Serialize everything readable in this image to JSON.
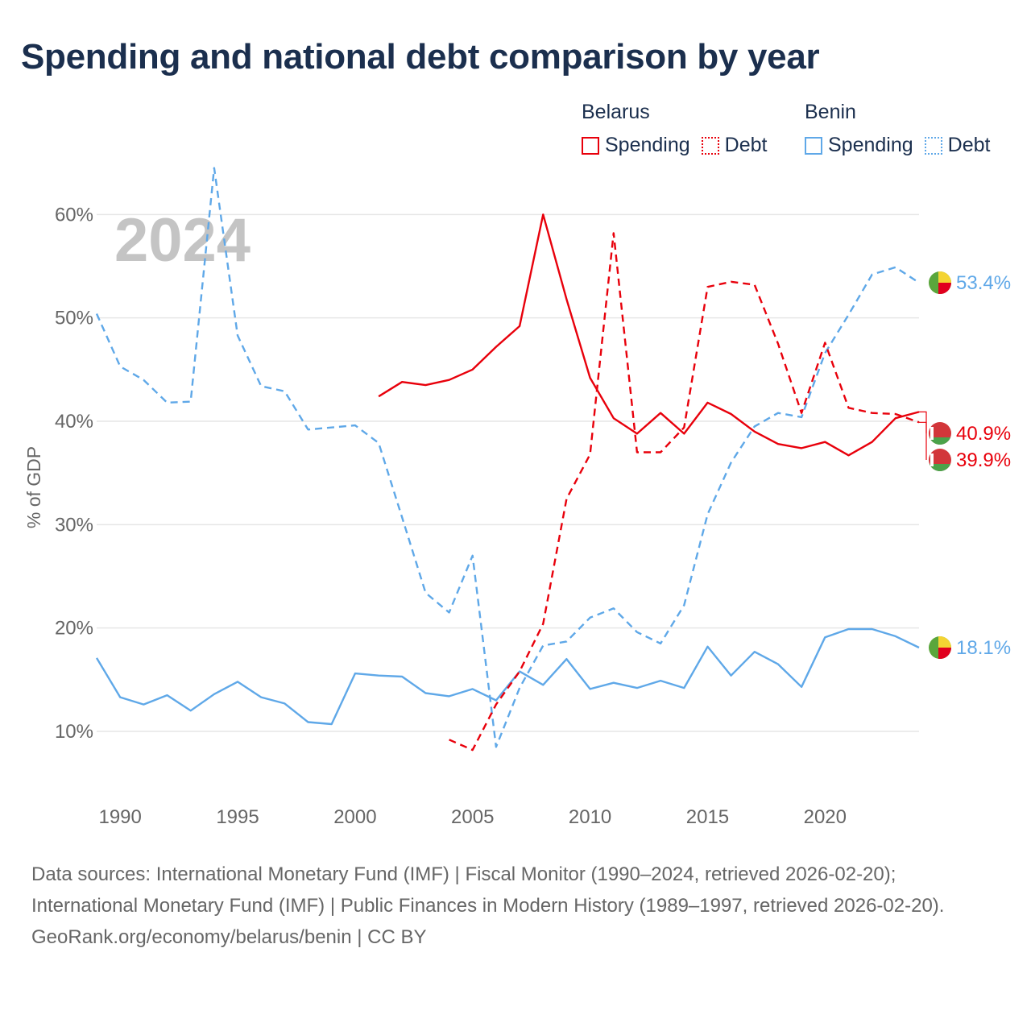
{
  "title": "Spending and national debt comparison by year",
  "legend": {
    "groups": [
      {
        "name": "Belarus",
        "items": [
          {
            "label": "Spending",
            "style": "solid",
            "color": "#e8000b"
          },
          {
            "label": "Debt",
            "style": "dotted",
            "color": "#e8000b"
          }
        ]
      },
      {
        "name": "Benin",
        "items": [
          {
            "label": "Spending",
            "style": "solid",
            "color": "#5fa8e8"
          },
          {
            "label": "Debt",
            "style": "dotted",
            "color": "#5fa8e8"
          }
        ]
      }
    ]
  },
  "chart_data": {
    "type": "line",
    "title": "Spending and national debt comparison by year",
    "year_label": "2024",
    "ylabel": "% of GDP",
    "xlim": [
      1989,
      2024
    ],
    "ylim": [
      4,
      64
    ],
    "x_ticks": [
      1990,
      1995,
      2000,
      2005,
      2010,
      2015,
      2020
    ],
    "y_ticks": [
      10,
      20,
      30,
      40,
      50,
      60
    ],
    "y_tick_labels": [
      "10%",
      "20%",
      "30%",
      "40%",
      "50%",
      "60%"
    ],
    "grid": true,
    "series": [
      {
        "name": "Belarus Spending",
        "country": "Belarus",
        "metric": "Spending",
        "color": "#e8000b",
        "dashed": false,
        "x": [
          2001,
          2002,
          2003,
          2004,
          2005,
          2006,
          2007,
          2008,
          2009,
          2010,
          2011,
          2012,
          2013,
          2014,
          2015,
          2016,
          2017,
          2018,
          2019,
          2020,
          2021,
          2022,
          2023,
          2024
        ],
        "values": [
          42.4,
          43.8,
          43.5,
          44.0,
          45.0,
          47.2,
          49.2,
          60.0,
          51.8,
          44.2,
          40.3,
          38.8,
          40.8,
          38.8,
          41.8,
          40.7,
          39.0,
          37.8,
          37.4,
          38.0,
          36.7,
          38.0,
          40.3,
          40.9
        ],
        "end_label": "40.9%"
      },
      {
        "name": "Belarus Debt",
        "country": "Belarus",
        "metric": "Debt",
        "color": "#e8000b",
        "dashed": true,
        "x": [
          2004,
          2005,
          2006,
          2007,
          2008,
          2009,
          2010,
          2011,
          2012,
          2013,
          2014,
          2015,
          2016,
          2017,
          2018,
          2019,
          2020,
          2021,
          2022,
          2023,
          2024
        ],
        "values": [
          9.2,
          8.2,
          12.6,
          15.8,
          20.4,
          32.5,
          36.8,
          58.2,
          37.0,
          37.0,
          39.4,
          53.0,
          53.5,
          53.2,
          47.5,
          40.8,
          47.6,
          41.3,
          40.8,
          40.7,
          39.9
        ],
        "end_label": "39.9%"
      },
      {
        "name": "Benin Spending",
        "country": "Benin",
        "metric": "Spending",
        "color": "#5fa8e8",
        "dashed": false,
        "x": [
          1989,
          1990,
          1991,
          1992,
          1993,
          1994,
          1995,
          1996,
          1997,
          1998,
          1999,
          2000,
          2001,
          2002,
          2003,
          2004,
          2005,
          2006,
          2007,
          2008,
          2009,
          2010,
          2011,
          2012,
          2013,
          2014,
          2015,
          2016,
          2017,
          2018,
          2019,
          2020,
          2021,
          2022,
          2023,
          2024
        ],
        "values": [
          17.1,
          13.3,
          12.6,
          13.5,
          12.0,
          13.6,
          14.8,
          13.3,
          12.7,
          10.9,
          10.7,
          15.6,
          15.4,
          15.3,
          13.7,
          13.4,
          14.1,
          13.0,
          15.8,
          14.5,
          17.0,
          14.1,
          14.7,
          14.2,
          14.9,
          14.2,
          18.2,
          15.4,
          17.7,
          16.5,
          14.3,
          19.1,
          19.9,
          19.9,
          19.2,
          18.1
        ],
        "end_label": "18.1%"
      },
      {
        "name": "Benin Debt",
        "country": "Benin",
        "metric": "Debt",
        "color": "#5fa8e8",
        "dashed": true,
        "x": [
          1989,
          1990,
          1991,
          1992,
          1993,
          1994,
          1995,
          1996,
          1997,
          1998,
          1999,
          2000,
          2001,
          2002,
          2003,
          2004,
          2005,
          2006,
          2007,
          2008,
          2009,
          2010,
          2011,
          2012,
          2013,
          2014,
          2015,
          2016,
          2017,
          2018,
          2019,
          2020,
          2021,
          2022,
          2023,
          2024
        ],
        "values": [
          50.4,
          45.3,
          44.0,
          41.8,
          41.9,
          64.5,
          48.3,
          43.4,
          42.9,
          39.2,
          39.4,
          39.6,
          37.9,
          30.7,
          23.4,
          21.5,
          27.0,
          8.5,
          14.2,
          18.3,
          18.7,
          21.0,
          21.9,
          19.6,
          18.5,
          22.2,
          31.0,
          36.0,
          39.5,
          40.8,
          40.4,
          46.6,
          50.3,
          54.2,
          54.9,
          53.4
        ],
        "end_label": "53.4%"
      }
    ]
  },
  "footer": {
    "sources": "Data sources: International Monetary Fund (IMF) | Fiscal Monitor (1990–2024, retrieved 2026-02-20); International Monetary Fund (IMF) | Public Finances in Modern History (1989–1997, retrieved 2026-02-20).",
    "credit": "GeoRank.org/economy/belarus/benin | CC BY"
  },
  "flag_colors": {
    "benin": {
      "green": "#5aa63c",
      "yellow": "#f4d433",
      "red": "#e1001e"
    },
    "belarus": {
      "red": "#d2363a",
      "green": "#4ba24a",
      "white": "#ffffff"
    }
  },
  "styles": {
    "grid": "#e6e6e6",
    "axis_text": "#666666",
    "year_watermark": "#c4c4c4"
  }
}
